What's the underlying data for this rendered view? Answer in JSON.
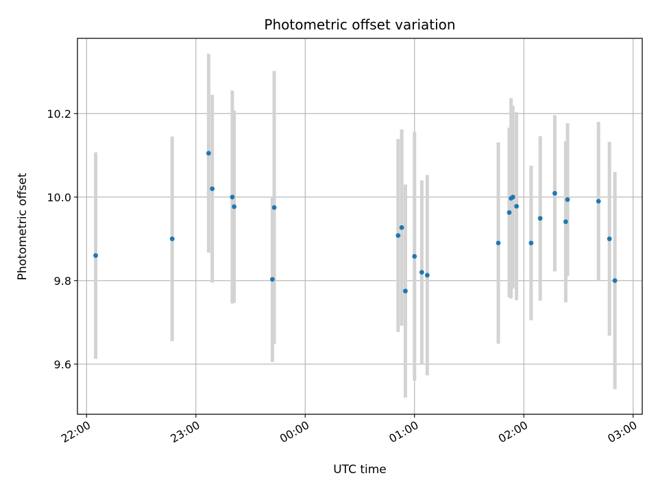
{
  "chart_data": {
    "type": "scatter",
    "title": "Photometric offset variation",
    "xlabel": "UTC time",
    "ylabel": "Photometric offset",
    "x_ticks": [
      "22:00",
      "23:00",
      "00:00",
      "01:00",
      "02:00",
      "03:00"
    ],
    "y_ticks": [
      "9.6",
      "9.8",
      "10.0",
      "10.2"
    ],
    "xlim": [
      "21:55",
      "03:05"
    ],
    "ylim": [
      9.48,
      10.38
    ],
    "grid": true,
    "colors": {
      "points": "#1f77b4",
      "error_bars": "#d3d3d3",
      "grid": "#b0b0b0"
    },
    "points": [
      {
        "time": "22:05",
        "value": 9.86,
        "err": 0.247
      },
      {
        "time": "22:47",
        "value": 9.9,
        "err": 0.245
      },
      {
        "time": "23:07",
        "value": 10.105,
        "err": 0.238
      },
      {
        "time": "23:09",
        "value": 10.02,
        "err": 0.225
      },
      {
        "time": "23:20",
        "value": 10.0,
        "err": 0.255
      },
      {
        "time": "23:21",
        "value": 9.977,
        "err": 0.23
      },
      {
        "time": "23:42",
        "value": 9.803,
        "err": 0.198
      },
      {
        "time": "23:43",
        "value": 9.975,
        "err": 0.327
      },
      {
        "time": "00:51",
        "value": 9.908,
        "err": 0.231
      },
      {
        "time": "00:53",
        "value": 9.927,
        "err": 0.235
      },
      {
        "time": "00:55",
        "value": 9.775,
        "err": 0.255
      },
      {
        "time": "01:00",
        "value": 9.858,
        "err": 0.298
      },
      {
        "time": "01:04",
        "value": 9.82,
        "err": 0.22
      },
      {
        "time": "01:07",
        "value": 9.813,
        "err": 0.24
      },
      {
        "time": "01:46",
        "value": 9.89,
        "err": 0.241
      },
      {
        "time": "01:52",
        "value": 9.963,
        "err": 0.203
      },
      {
        "time": "01:53",
        "value": 9.997,
        "err": 0.24
      },
      {
        "time": "01:54",
        "value": 10.0,
        "err": 0.219
      },
      {
        "time": "01:56",
        "value": 9.978,
        "err": 0.225
      },
      {
        "time": "02:04",
        "value": 9.89,
        "err": 0.185
      },
      {
        "time": "02:09",
        "value": 9.949,
        "err": 0.197
      },
      {
        "time": "02:17",
        "value": 10.009,
        "err": 0.187
      },
      {
        "time": "02:23",
        "value": 9.941,
        "err": 0.193
      },
      {
        "time": "02:24",
        "value": 9.994,
        "err": 0.183
      },
      {
        "time": "02:41",
        "value": 9.99,
        "err": 0.19
      },
      {
        "time": "02:47",
        "value": 9.9,
        "err": 0.232
      },
      {
        "time": "02:50",
        "value": 9.8,
        "err": 0.26
      }
    ]
  }
}
